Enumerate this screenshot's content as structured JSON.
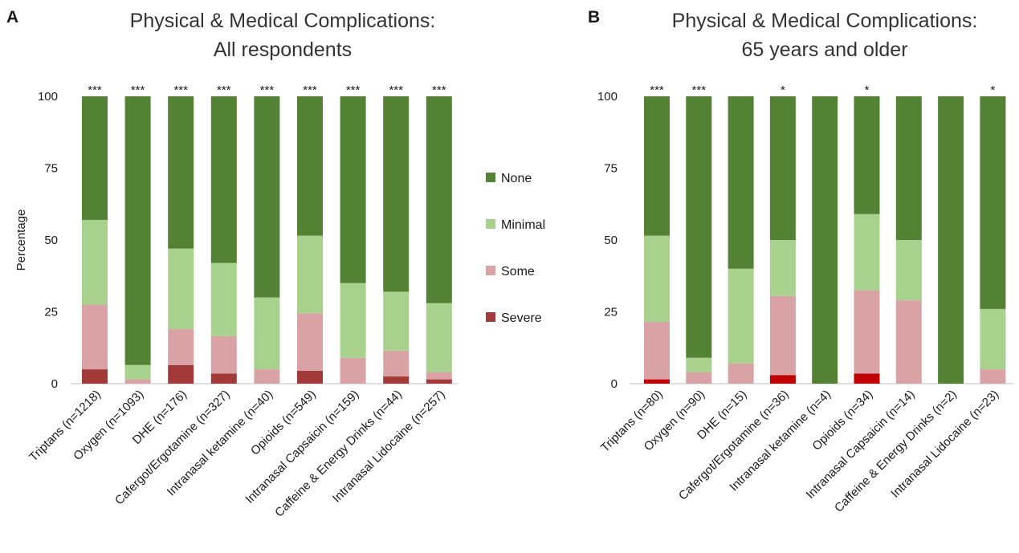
{
  "legend": [
    {
      "key": "none",
      "label": "None",
      "color": "#548235"
    },
    {
      "key": "minimal",
      "label": "Minimal",
      "color": "#a9d18e"
    },
    {
      "key": "some",
      "label": "Some",
      "color": "#d9a3a6"
    },
    {
      "key": "severe",
      "label": "Severe",
      "color": "#a33a3a"
    }
  ],
  "chart_data": [
    {
      "type": "bar",
      "stacked": true,
      "panel": "A",
      "title": [
        "Physical & Medical Complications:",
        "All respondents"
      ],
      "xlabel": "",
      "ylabel": "Percentage",
      "ylim": [
        0,
        100
      ],
      "yticks": [
        0,
        25,
        50,
        75,
        100
      ],
      "categories": [
        "Triptans (n=1218)",
        "Oxygen (n=1093)",
        "DHE (n=176)",
        "Cafergot/Ergotamine (n=327)",
        "Intranasal ketamine (n=40)",
        "Opioids (n=549)",
        "Intranasal Capsaicin (n=159)",
        "Caffeine & Energy Drinks (n=44)",
        "Intranasal Lidocaine (n=257)"
      ],
      "significance": [
        "***",
        "***",
        "***",
        "***",
        "***",
        "***",
        "***",
        "***",
        "***"
      ],
      "series": [
        {
          "name": "Severe",
          "color": "#a33a3a",
          "values": [
            5,
            0,
            6.5,
            3.5,
            0,
            4.5,
            0,
            2.5,
            1.5
          ]
        },
        {
          "name": "Some",
          "color": "#d9a3a6",
          "values": [
            22.5,
            1.5,
            12.5,
            13,
            5,
            20,
            9,
            9,
            2.5
          ]
        },
        {
          "name": "Minimal",
          "color": "#a9d18e",
          "values": [
            29.5,
            5,
            28,
            25.5,
            25,
            27,
            26,
            20.5,
            24
          ]
        },
        {
          "name": "None",
          "color": "#548235",
          "values": [
            43,
            93.5,
            53,
            58,
            70,
            48.5,
            65,
            68,
            72
          ]
        }
      ]
    },
    {
      "type": "bar",
      "stacked": true,
      "panel": "B",
      "title": [
        "Physical & Medical Complications:",
        "65 years and older"
      ],
      "xlabel": "",
      "ylabel": "",
      "ylim": [
        0,
        100
      ],
      "yticks": [
        0,
        25,
        50,
        75,
        100
      ],
      "categories": [
        "Triptans (n=80)",
        "Oxygen (n=90)",
        "DHE (n=15)",
        "Cafergot/Ergotamine (n=36)",
        "Intranasal ketamine (n=4)",
        "Opioids (n=34)",
        "Intranasal Capsaicin (n=14)",
        "Caffeine & Energy Drinks (n=2)",
        "Intranasal Lidocaine (n=23)"
      ],
      "significance": [
        "***",
        "***",
        "",
        "*",
        "",
        "*",
        "",
        "",
        "*"
      ],
      "series": [
        {
          "name": "Severe",
          "color": "#c00000",
          "values": [
            1.5,
            0,
            0,
            3,
            0,
            3.5,
            0,
            0,
            0
          ]
        },
        {
          "name": "Some",
          "color": "#d9a3a6",
          "values": [
            20,
            4,
            7,
            27.5,
            0,
            29,
            29,
            0,
            5
          ]
        },
        {
          "name": "Minimal",
          "color": "#a9d18e",
          "values": [
            30,
            5,
            33,
            19.5,
            0,
            26.5,
            21,
            0,
            21
          ]
        },
        {
          "name": "None",
          "color": "#548235",
          "values": [
            48.5,
            91,
            60,
            50,
            100,
            41,
            50,
            100,
            74
          ]
        }
      ]
    }
  ]
}
